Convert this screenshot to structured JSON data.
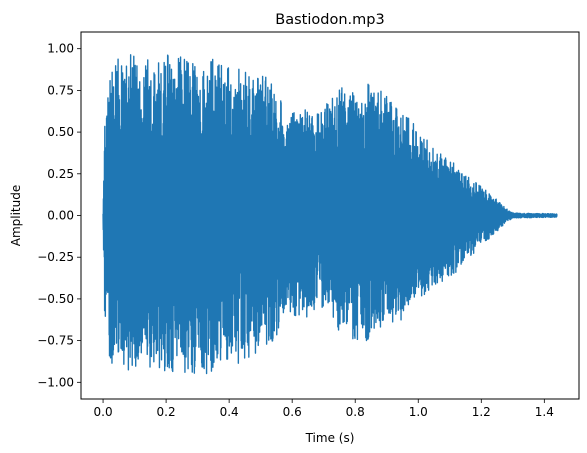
{
  "chart_data": {
    "type": "line",
    "title": "Bastiodon.mp3",
    "xlabel": "Time (s)",
    "ylabel": "Amplitude",
    "xlim": [
      -0.07,
      1.51
    ],
    "ylim": [
      -1.1,
      1.1
    ],
    "x_ticks": [
      0.0,
      0.2,
      0.4,
      0.6,
      0.8,
      1.0,
      1.2,
      1.4
    ],
    "x_tick_labels": [
      "0.0",
      "0.2",
      "0.4",
      "0.6",
      "0.8",
      "1.0",
      "1.2",
      "1.4"
    ],
    "y_ticks": [
      -1.0,
      -0.75,
      -0.5,
      -0.25,
      0.0,
      0.25,
      0.5,
      0.75,
      1.0
    ],
    "y_tick_labels": [
      "−1.00",
      "−0.75",
      "−0.50",
      "−0.25",
      "0.00",
      "0.25",
      "0.50",
      "0.75",
      "1.00"
    ],
    "grid": false,
    "series": [
      {
        "color": "#1f77b4",
        "duration": 1.44,
        "envelope_description": "waveform peak envelope (time s, positive peak, negative peak)",
        "envelope": [
          {
            "t": 0.0,
            "max": 0.02,
            "min": -0.02
          },
          {
            "t": 0.005,
            "max": 0.55,
            "min": -0.7
          },
          {
            "t": 0.02,
            "max": 0.92,
            "min": -0.88
          },
          {
            "t": 0.05,
            "max": 0.95,
            "min": -0.92
          },
          {
            "t": 0.1,
            "max": 0.97,
            "min": -0.93
          },
          {
            "t": 0.15,
            "max": 0.95,
            "min": -0.94
          },
          {
            "t": 0.2,
            "max": 0.97,
            "min": -0.95
          },
          {
            "t": 0.25,
            "max": 0.96,
            "min": -0.96
          },
          {
            "t": 0.3,
            "max": 0.95,
            "min": -0.95
          },
          {
            "t": 0.35,
            "max": 0.94,
            "min": -0.96
          },
          {
            "t": 0.4,
            "max": 0.93,
            "min": -0.92
          },
          {
            "t": 0.45,
            "max": 0.88,
            "min": -0.88
          },
          {
            "t": 0.5,
            "max": 0.86,
            "min": -0.8
          },
          {
            "t": 0.55,
            "max": 0.82,
            "min": -0.75
          },
          {
            "t": 0.58,
            "max": 0.55,
            "min": -0.55
          },
          {
            "t": 0.62,
            "max": 0.68,
            "min": -0.63
          },
          {
            "t": 0.67,
            "max": 0.6,
            "min": -0.6
          },
          {
            "t": 0.7,
            "max": 0.65,
            "min": -0.55
          },
          {
            "t": 0.75,
            "max": 0.78,
            "min": -0.7
          },
          {
            "t": 0.8,
            "max": 0.75,
            "min": -0.77
          },
          {
            "t": 0.85,
            "max": 0.8,
            "min": -0.75
          },
          {
            "t": 0.9,
            "max": 0.72,
            "min": -0.7
          },
          {
            "t": 0.95,
            "max": 0.65,
            "min": -0.62
          },
          {
            "t": 1.0,
            "max": 0.52,
            "min": -0.52
          },
          {
            "t": 1.05,
            "max": 0.4,
            "min": -0.42
          },
          {
            "t": 1.1,
            "max": 0.35,
            "min": -0.38
          },
          {
            "t": 1.15,
            "max": 0.25,
            "min": -0.28
          },
          {
            "t": 1.2,
            "max": 0.18,
            "min": -0.18
          },
          {
            "t": 1.25,
            "max": 0.1,
            "min": -0.1
          },
          {
            "t": 1.28,
            "max": 0.04,
            "min": -0.04
          },
          {
            "t": 1.3,
            "max": 0.015,
            "min": -0.015
          },
          {
            "t": 1.44,
            "max": 0.01,
            "min": -0.01
          }
        ]
      }
    ]
  }
}
